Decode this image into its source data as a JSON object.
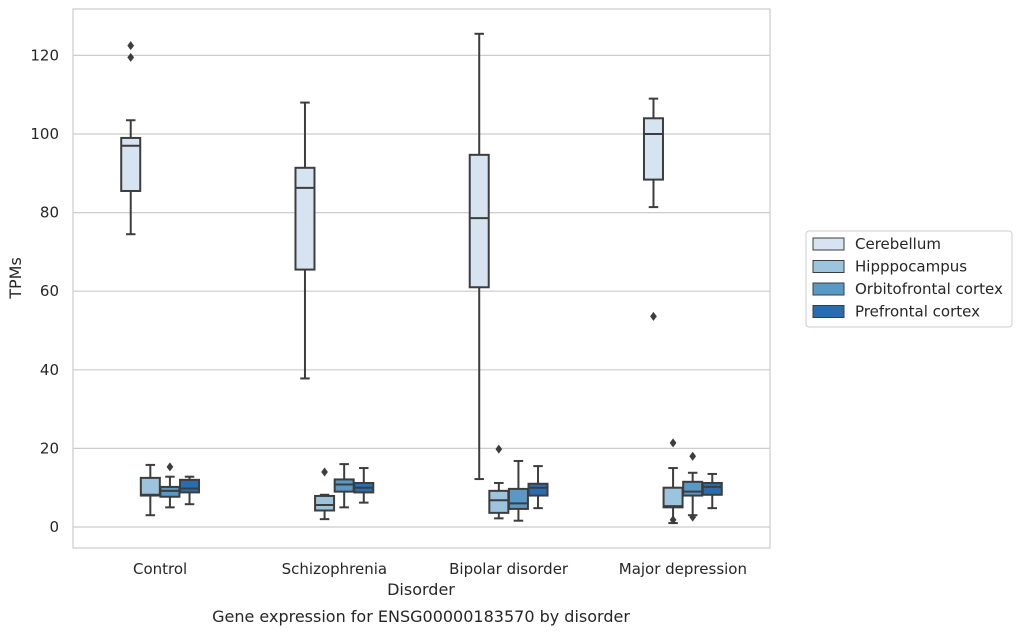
{
  "caption": "Gene expression for ENSG00000183570 by disorder",
  "chart_data": {
    "type": "box",
    "xlabel": "Disorder",
    "ylabel": "TPMs",
    "ylim": [
      -5,
      132
    ],
    "yticks": [
      0,
      20,
      40,
      60,
      80,
      100,
      120
    ],
    "grid": "horizontal",
    "legend_position": "right",
    "categories": [
      "Control",
      "Schizophrenia",
      "Bipolar disorder",
      "Major depression"
    ],
    "series": [
      {
        "name": "Cerebellum",
        "color": "#d6e4f1",
        "boxes": [
          {
            "whislo": 74.5,
            "q1": 85.5,
            "med": 97,
            "q3": 99,
            "whishi": 103.5,
            "fliers": [
              119.5,
              122.5
            ]
          },
          {
            "whislo": 37.8,
            "q1": 65.5,
            "med": 86.3,
            "q3": 91.4,
            "whishi": 108,
            "fliers": []
          },
          {
            "whislo": 12.2,
            "q1": 61,
            "med": 78.6,
            "q3": 94.7,
            "whishi": 125.5,
            "fliers": []
          },
          {
            "whislo": 81.4,
            "q1": 88.4,
            "med": 100,
            "q3": 104,
            "whishi": 109,
            "fliers": [
              53.6
            ]
          }
        ]
      },
      {
        "name": "Hipppocampus",
        "color": "#9dc4dd",
        "boxes": [
          {
            "whislo": 3,
            "q1": 8,
            "med": 8.2,
            "q3": 12.5,
            "whishi": 15.8,
            "fliers": []
          },
          {
            "whislo": 2,
            "q1": 4.2,
            "med": 5.6,
            "q3": 7.9,
            "whishi": 8.2,
            "fliers": [
              14
            ]
          },
          {
            "whislo": 2.2,
            "q1": 3.6,
            "med": 6.8,
            "q3": 9.2,
            "whishi": 11.2,
            "fliers": [
              19.8
            ]
          },
          {
            "whislo": 1,
            "q1": 5,
            "med": 5.3,
            "q3": 10,
            "whishi": 15,
            "fliers": [
              1.8,
              21.4
            ]
          }
        ]
      },
      {
        "name": "Orbitofrontal cortex",
        "color": "#5899c6",
        "boxes": [
          {
            "whislo": 5,
            "q1": 7.7,
            "med": 9.2,
            "q3": 10.2,
            "whishi": 12.8,
            "fliers": [
              15.3
            ]
          },
          {
            "whislo": 5,
            "q1": 9,
            "med": 10.8,
            "q3": 12.1,
            "whishi": 16,
            "fliers": []
          },
          {
            "whislo": 1.6,
            "q1": 4.6,
            "med": 6,
            "q3": 9.7,
            "whishi": 16.8,
            "fliers": []
          },
          {
            "whislo": 3,
            "q1": 8,
            "med": 9,
            "q3": 11.5,
            "whishi": 13.8,
            "fliers": [
              2.5,
              18
            ]
          }
        ]
      },
      {
        "name": "Prefrontal cortex",
        "color": "#2a6daf",
        "boxes": [
          {
            "whislo": 5.8,
            "q1": 8.8,
            "med": 9.8,
            "q3": 12,
            "whishi": 12.8,
            "fliers": []
          },
          {
            "whislo": 6.2,
            "q1": 8.8,
            "med": 10,
            "q3": 11.2,
            "whishi": 15,
            "fliers": []
          },
          {
            "whislo": 4.8,
            "q1": 8,
            "med": 10,
            "q3": 11,
            "whishi": 15.5,
            "fliers": []
          },
          {
            "whislo": 4.8,
            "q1": 8.2,
            "med": 10.2,
            "q3": 11.2,
            "whishi": 13.5,
            "fliers": []
          }
        ]
      }
    ]
  }
}
